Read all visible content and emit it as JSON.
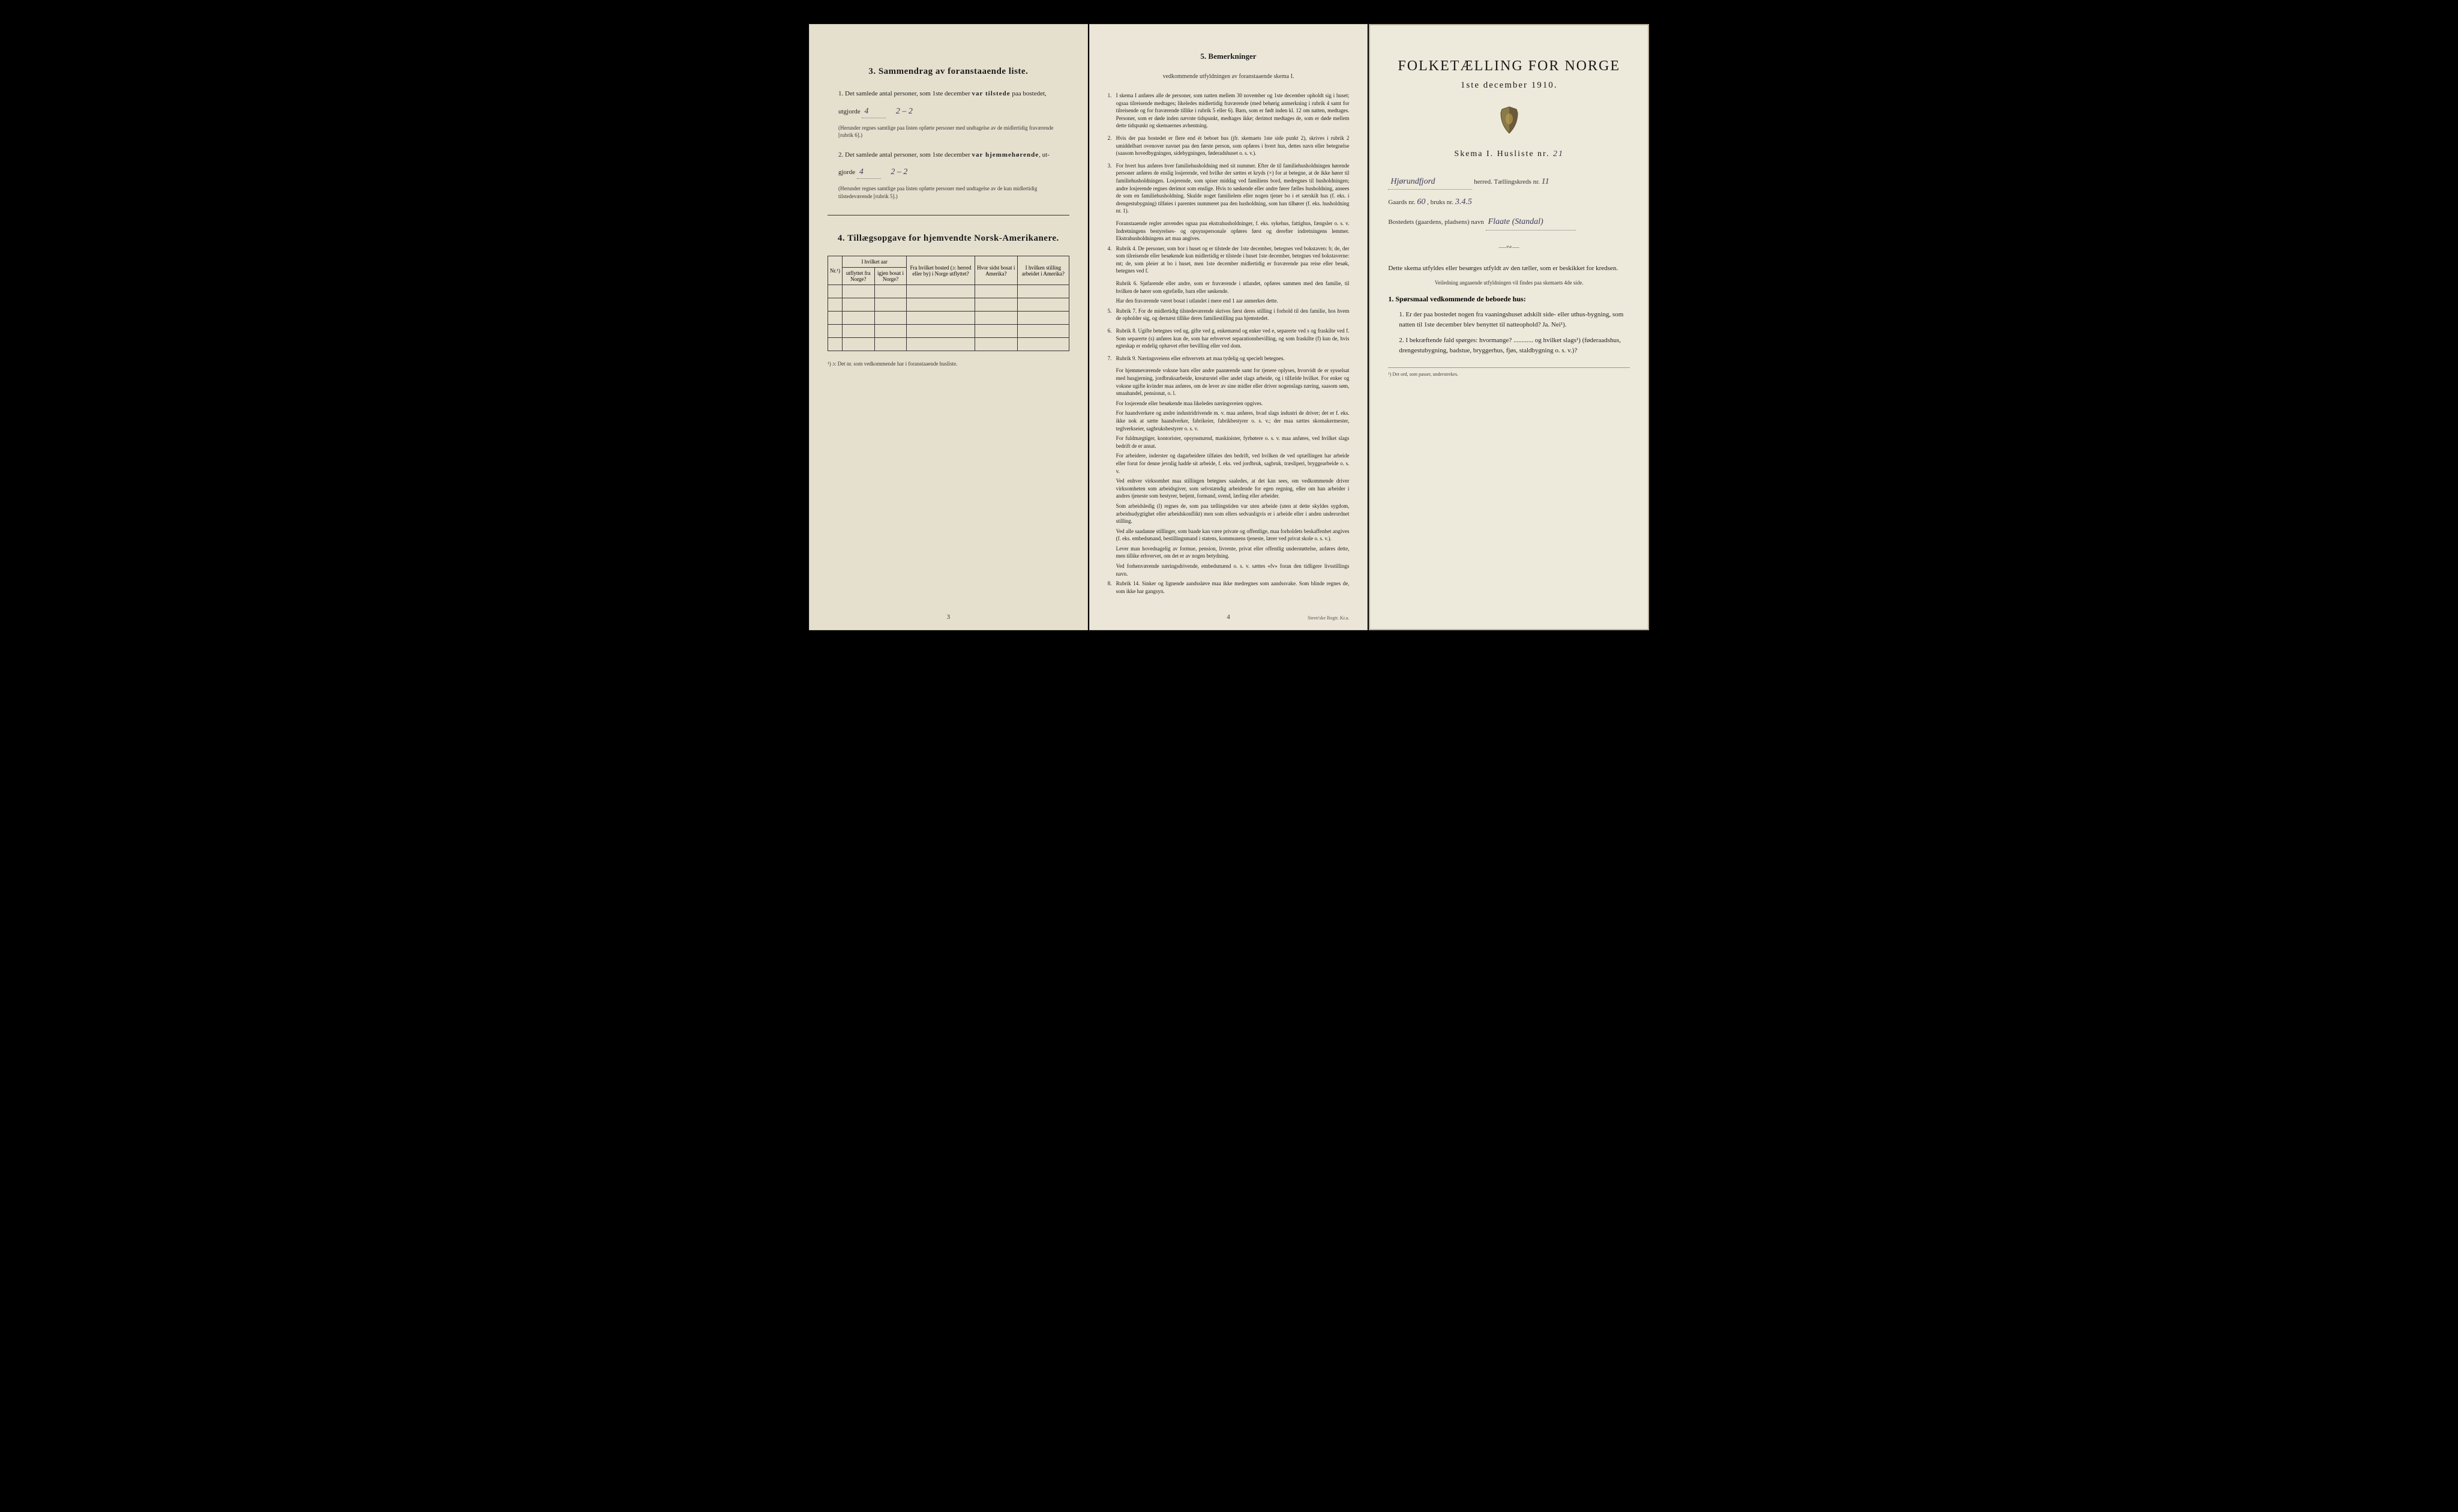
{
  "left": {
    "section3_title": "3.  Sammendrag av foranstaaende liste.",
    "item1_lead": "1.  Det samlede antal personer, som 1ste december ",
    "item1_bold": "var tilstede",
    "item1_tail": " paa bostedet,",
    "item1_line2_lead": "utgjorde ",
    "item1_value": "4",
    "item1_ratio_lead": "",
    "item1_ratio": "2 – 2",
    "item1_note": "(Herunder regnes samtlige paa listen opførte personer med undtagelse av de midlertidig fraværende [rubrik 6].)",
    "item2_lead": "2.  Det samlede antal personer, som 1ste december ",
    "item2_bold": "var hjemmehørende",
    "item2_tail": ", ut-",
    "item2_line2_lead": "gjorde ",
    "item2_value": "4",
    "item2_ratio": "2 – 2",
    "item2_note": "(Herunder regnes samtlige paa listen opførte personer med undtagelse av de kun midlertidig tilstedeværende [rubrik 5].)",
    "section4_title": "4.  Tillægsopgave for hjemvendte Norsk-Amerikanere.",
    "table": {
      "col_nr": "Nr.¹)",
      "col_aar_header": "I hvilket aar",
      "col_utflyttet": "utflyttet fra Norge?",
      "col_igjen": "igjen bosat i Norge?",
      "col_fra": "Fra hvilket bosted (ɔ: herred eller by) i Norge utflyttet?",
      "col_hvor": "Hvor sidst bosat i Amerika?",
      "col_stilling": "I hvilken stilling arbeidet i Amerika?",
      "blank_rows": 5
    },
    "table_footnote": "¹) ɔ: Det nr. som vedkommende har i foranstaaende husliste.",
    "page_num": "3"
  },
  "middle": {
    "section5_title": "5.  Bemerkninger",
    "section5_sub": "vedkommende utfyldningen av foranstaaende skema I.",
    "rules": [
      {
        "n": "1.",
        "text": "I skema I anføres alle de personer, som natten mellem 30 november og 1ste december opholdt sig i huset; ogsaa tilreisende medtages; likeledes midlertidig fraværende (med behørig anmerkning i rubrik 4 samt for tilreisende og for fraværende tillike i rubrik 5 eller 6). Barn, som er født inden kl. 12 om natten, medtages. Personer, som er døde inden nævnte tidspunkt, medtages ikke; derimot medtages de, som er døde mellem dette tidspunkt og skemaernes avhentning."
      },
      {
        "n": "2.",
        "text": "Hvis der paa bostedet er flere end ét beboet hus (jfr. skemaets 1ste side punkt 2), skrives i rubrik 2 umiddelbart ovenover navnet paa den første person, som opføres i hvert hus, dettes navn eller betegnelse (saasom hovedbygningen, sidebygningen, føderadshuset o. s. v.)."
      },
      {
        "n": "3.",
        "text": "For hvert hus anføres hver familiehusholdning med sit nummer. Efter de til familiehusholdningen hørende personer anføres de enslig losjerende, ved hvilke der sættes et kryds (×) for at betegne, at de ikke hører til familiehusholdningen. Losjerende, som spiser middag ved familiens bord, medregnes til husholdningen; andre losjerende regnes derimot som enslige. Hvis to søskende eller andre fører fælles husholdning, ansees de som en familiehusholdning. Skulde noget familielem eller nogen tjener bo i et særskilt hus (f. eks. i drengestubygning) tilføies i parentes nummeret paa den husholdning, som han tilhører (f. eks. husholdning nr. 1).",
        "subs": [
          "Foranstaaende regler anvendes ogsaa paa ekstrahusholdninger, f. eks. sykehus, fattighus, fængsler o. s. v. Indretningens bestyrelses- og opsynspersonale opføres først og derefter indretningens lemmer. Ekstrahusholdningens art maa angives."
        ]
      },
      {
        "n": "4.",
        "text": "Rubrik 4. De personer, som bor i huset og er tilstede der 1ste december, betegnes ved bokstaven: b; de, der som tilreisende eller besøkende kun midlertidig er tilstede i huset 1ste december, betegnes ved bokstaverne: mt; de, som pleier at bo i huset, men 1ste december midlertidig er fraværende paa reise eller besøk, betegnes ved f.",
        "subs": [
          "Rubrik 6. Sjøfarende eller andre, som er fraværende i utlandet, opføres sammen med den familie, til hvilken de hører som egtefælle, barn eller søskende.",
          "Har den fraværende været bosat i utlandet i mere end 1 aar anmerkes dette."
        ]
      },
      {
        "n": "5.",
        "text": "Rubrik 7. For de midlertidig tilstedeværende skrives først deres stilling i forhold til den familie, hos hvem de opholder sig, og dernæst tillike deres familiestilling paa hjemstedet."
      },
      {
        "n": "6.",
        "text": "Rubrik 8. Ugifte betegnes ved ug, gifte ved g, enkemænd og enker ved e, separerte ved s og fraskilte ved f. Som separerte (s) anføres kun de, som har erhvervet separationsbevilling, og som fraskilte (f) kun de, hvis egteskap er endelig ophævet efter bevilling eller ved dom."
      },
      {
        "n": "7.",
        "text": "Rubrik 9. Næringsveiens eller erhvervets art maa tydelig og specielt betegnes.",
        "subs": [
          "For hjemmeværende voksne barn eller andre paarørende samt for tjenere oplyses, hvorvidt de er sysselsat med husgjerning, jordbruksarbeide, kreaturstel eller andet slags arbeide, og i tilfælde hvilket. For enker og voksne ugifte kvinder maa anføres, om de lever av sine midler eller driver nogenslags næring, saasom søm, smaahandel, pensionat, o. l.",
          "For losjerende eller besøkende maa likeledes næringsveien opgives.",
          "For haandverkere og andre industridrivende m. v. maa anføres, hvad slags industri de driver; det er f. eks. ikke nok at sætte haandverker, fabrikeier, fabrikbestyrer o. s. v.; der maa sættes skomakermester, teglverkseier, sagbruksbestyrer o. s. v.",
          "For fuldmægtiger, kontorister, opsynsmænd, maskinister, fyrbøtere o. s. v. maa anføres, ved hvilket slags bedrift de er ansat.",
          "For arbeidere, inderster og dagarbeidere tilføies den bedrift, ved hvilken de ved optællingen har arbeide eller forut for denne jevnlig hadde sit arbeide, f. eks. ved jordbruk, sagbruk, træsliperi, bryggearbeide o. s. v.",
          "Ved enhver virksomhet maa stillingen betegnes saaledes, at det kan sees, om vedkommende driver virksomheten som arbeidsgiver, som selvstændig arbeidende for egen regning, eller om han arbeider i andres tjeneste som bestyrer, betjent, formand, svend, lærling eller arbeider.",
          "Som arbeidsledig (l) regnes de, som paa tællingstiden var uten arbeide (uten at dette skyldes sygdom, arbeidsudygtighet eller arbeidskonflikt) men som ellers sedvanligvis er i arbeide eller i anden underordnet stilling.",
          "Ved alle saadanne stillinger, som baade kan være private og offentlige, maa forholdets beskaffenhet angives (f. eks. embedsmand, bestillingsmand i statens, kommunens tjeneste, lærer ved privat skole o. s. v.).",
          "Lever man hovedsagelig av formue, pension, livrente, privat eller offentlig understøttelse, anføres dette, men tillike erhvervet, om det er av nogen betydning.",
          "Ved forhenværende næringsdrivende, embedsmænd o. s. v. sættes «fv» foran den tidligere livsstillings navn."
        ]
      },
      {
        "n": "8.",
        "text": "Rubrik 14. Sinker og lignende aandssløve maa ikke medregnes som aandssvake. Som blinde regnes de, som ikke har gangsyn."
      }
    ],
    "page_num": "4",
    "imprint": "Steen'ske Bogtr.  Kr.a."
  },
  "right": {
    "main_title": "FOLKETÆLLING FOR NORGE",
    "date": "1ste december 1910.",
    "skema_label": "Skema I.   Husliste nr.",
    "husliste_nr": "21",
    "herred_value": "Hjørundfjord",
    "herred_label": " herred.  Tællingskreds nr. ",
    "kreds_nr": "11",
    "gaards_lead": "Gaards nr. ",
    "gaards_nr": "60",
    "bruks_lead": ", bruks nr. ",
    "bruks_nr": "3.4.5",
    "bosted_lead": "Bostedets (gaardens, pladsens) navn ",
    "bosted_navn": "Flaate (Standal)",
    "instruction1": "Dette skema utfyldes eller besørges utfyldt av den tæller, som er beskikket for kredsen.",
    "instruction2": "Veiledning angaaende utfyldningen vil findes paa skemaets 4de side.",
    "q_heading": "1. Spørsmaal vedkommende de beboede hus:",
    "q1": "1.  Er der paa bostedet nogen fra vaaningshuset adskilt side- eller uthus-bygning, som natten til 1ste december blev benyttet til natteophold?   Ja.   Nei¹).",
    "q2": "2.  I bekræftende fald spørges: hvormange? ............ og hvilket slags¹) (føderaadshus, drengestubygning, badstue, bryggerhus, fjøs, staldbygning o. s. v.)?",
    "footnote": "¹) Det ord, som passer, understrekes."
  }
}
